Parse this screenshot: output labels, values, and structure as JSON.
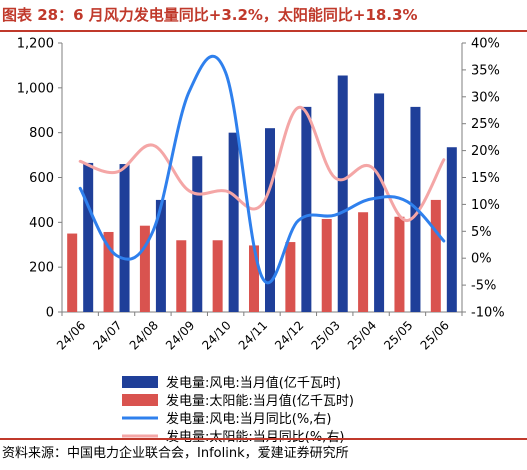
{
  "header": {
    "title": "图表 28：6 月风力发电量同比+3.2%，太阳能同比+18.3%"
  },
  "footer": {
    "source": "资料来源：中国电力企业联合会，Infolink，爱建证券研究所"
  },
  "colors": {
    "wind_bar": "#1f3f99",
    "solar_bar": "#d9534f",
    "wind_line": "#2f80ed",
    "solar_line": "#f4a6a6",
    "rule": "#c0392b",
    "title": "#c0392b"
  },
  "chart_data": {
    "type": "bar",
    "categories": [
      "24/06",
      "24/07",
      "24/08",
      "24/09",
      "24/10",
      "24/11",
      "24/12",
      "25/03",
      "25/04",
      "25/05",
      "25/06"
    ],
    "series": [
      {
        "name": "发电量:风电:当月值(亿千瓦时)",
        "kind": "bar",
        "axis": "left",
        "values": [
          665,
          660,
          500,
          695,
          800,
          820,
          915,
          1055,
          975,
          915,
          735
        ]
      },
      {
        "name": "发电量:太阳能:当月值(亿千瓦时)",
        "kind": "bar",
        "axis": "left",
        "values": [
          350,
          357,
          385,
          320,
          320,
          297,
          312,
          415,
          445,
          425,
          500
        ]
      },
      {
        "name": "发电量:风电:当月同比(%,右)",
        "kind": "line",
        "axis": "right",
        "values": [
          13,
          0.5,
          5,
          31,
          34.5,
          -3.5,
          7,
          8,
          11,
          10.5,
          3.2
        ]
      },
      {
        "name": "发电量:太阳能:当月同比(%,右)",
        "kind": "line",
        "axis": "right",
        "values": [
          18,
          16,
          21,
          12.5,
          12.5,
          10,
          28,
          15,
          17,
          7,
          18.3
        ]
      }
    ],
    "y_left": {
      "min": 0,
      "max": 1200,
      "step": 200,
      "ticks": [
        "0",
        "200",
        "400",
        "600",
        "800",
        "1,000",
        "1,200"
      ]
    },
    "y_right": {
      "min": -10,
      "max": 40,
      "step": 5,
      "ticks": [
        "-10%",
        "-5%",
        "0%",
        "5%",
        "10%",
        "15%",
        "20%",
        "25%",
        "30%",
        "35%",
        "40%"
      ]
    },
    "grid": false,
    "legend_position": "bottom-center"
  }
}
